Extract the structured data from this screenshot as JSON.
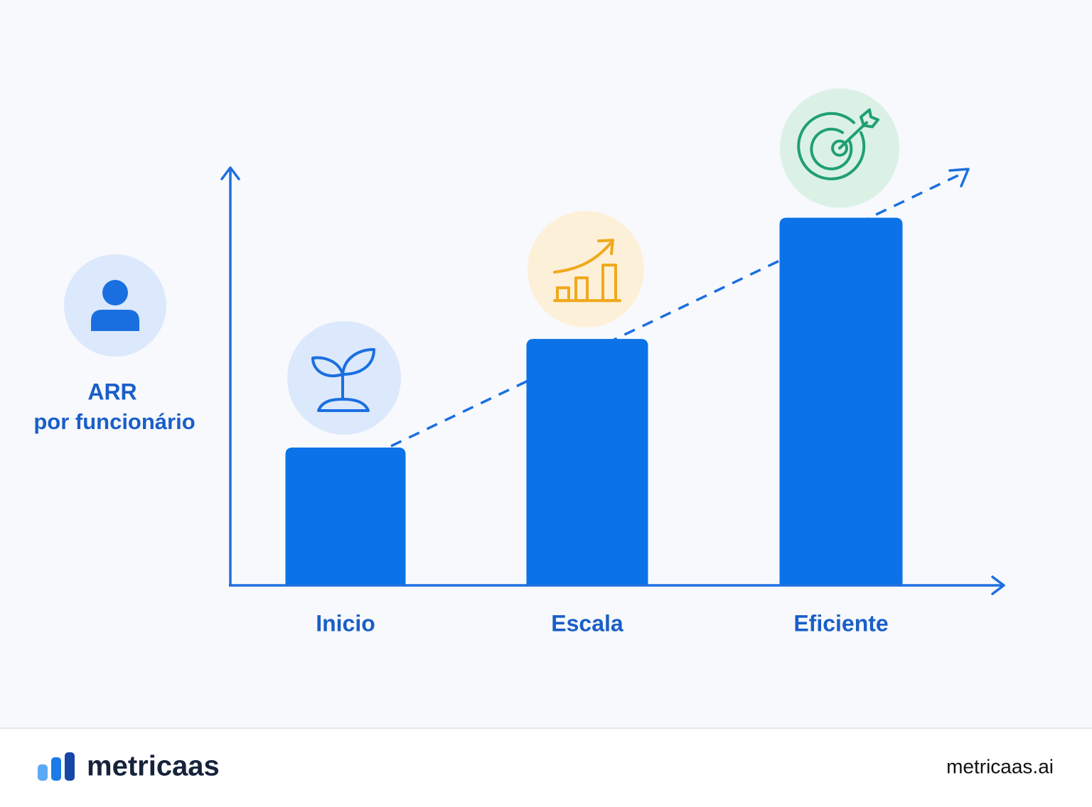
{
  "chart_data": {
    "type": "bar",
    "ylabel": [
      "ARR",
      "por funcionário"
    ],
    "categories": [
      "Inicio",
      "Escala",
      "Eficiente"
    ],
    "values": [
      33,
      59,
      88
    ],
    "color": "#0b72e7",
    "ylim": [
      0,
      100
    ]
  },
  "footer": {
    "brand": "metricaas",
    "website": "metricaas.ai"
  }
}
